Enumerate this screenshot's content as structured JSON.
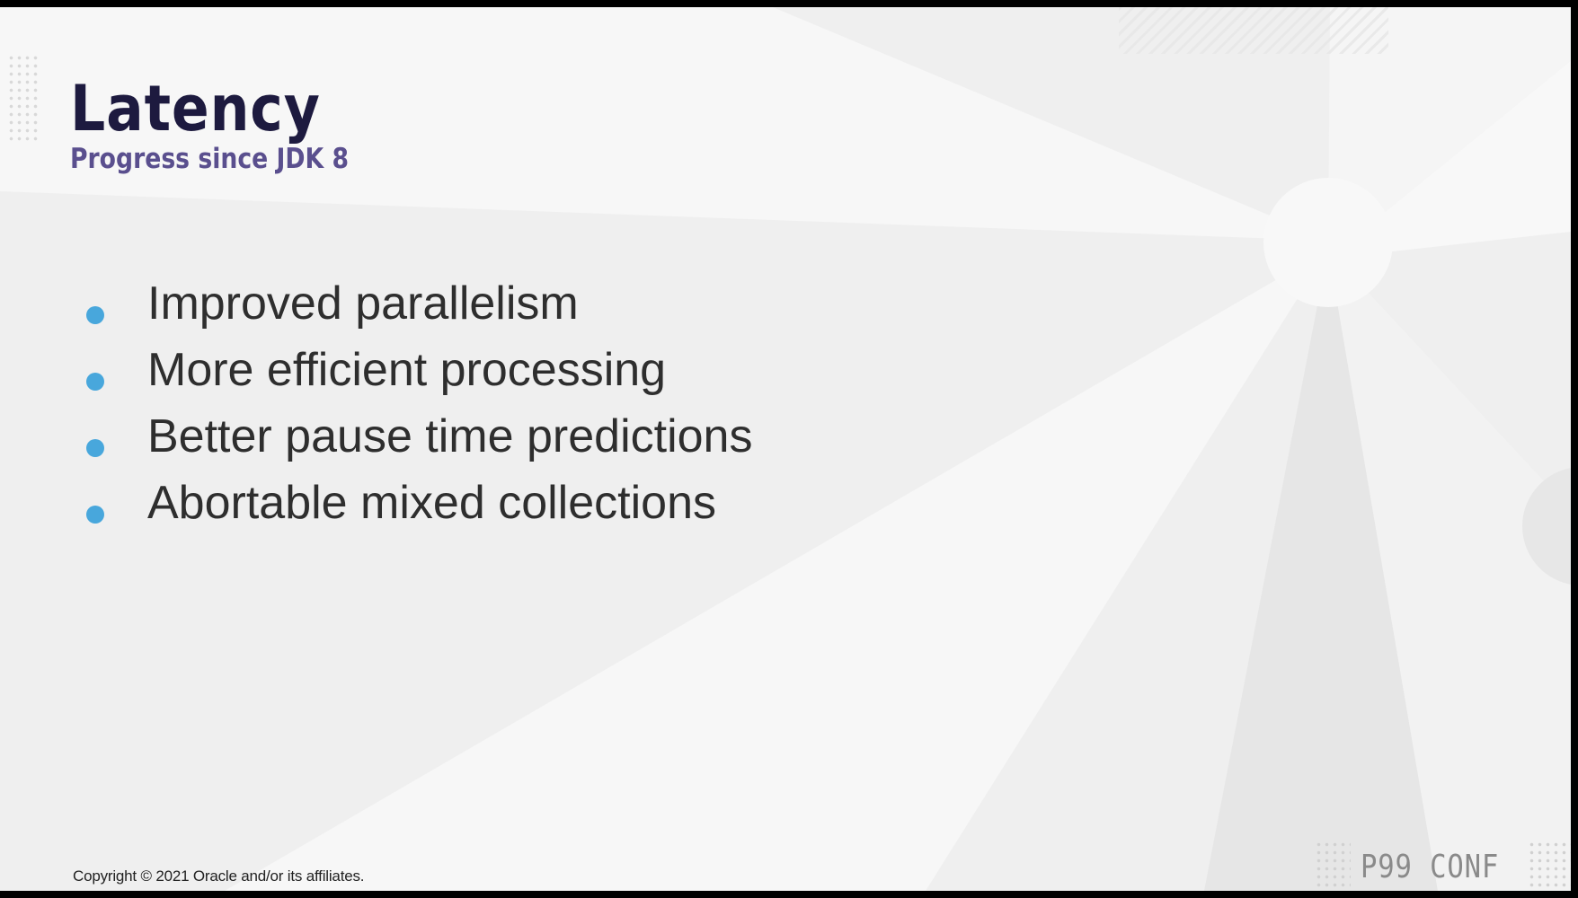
{
  "slide": {
    "title": "Latency",
    "subtitle": "Progress since JDK 8",
    "bullets": [
      "Improved parallelism",
      "More efficient processing",
      "Better pause time predictions",
      "Abortable mixed collections"
    ],
    "copyright": "Copyright © 2021 Oracle and/or its affiliates.",
    "brand": "P99 CONF"
  },
  "colors": {
    "title": "#1d1a3f",
    "subtitle": "#5a4f8e",
    "bullet": "#48a7dc",
    "background": "#efefef"
  }
}
